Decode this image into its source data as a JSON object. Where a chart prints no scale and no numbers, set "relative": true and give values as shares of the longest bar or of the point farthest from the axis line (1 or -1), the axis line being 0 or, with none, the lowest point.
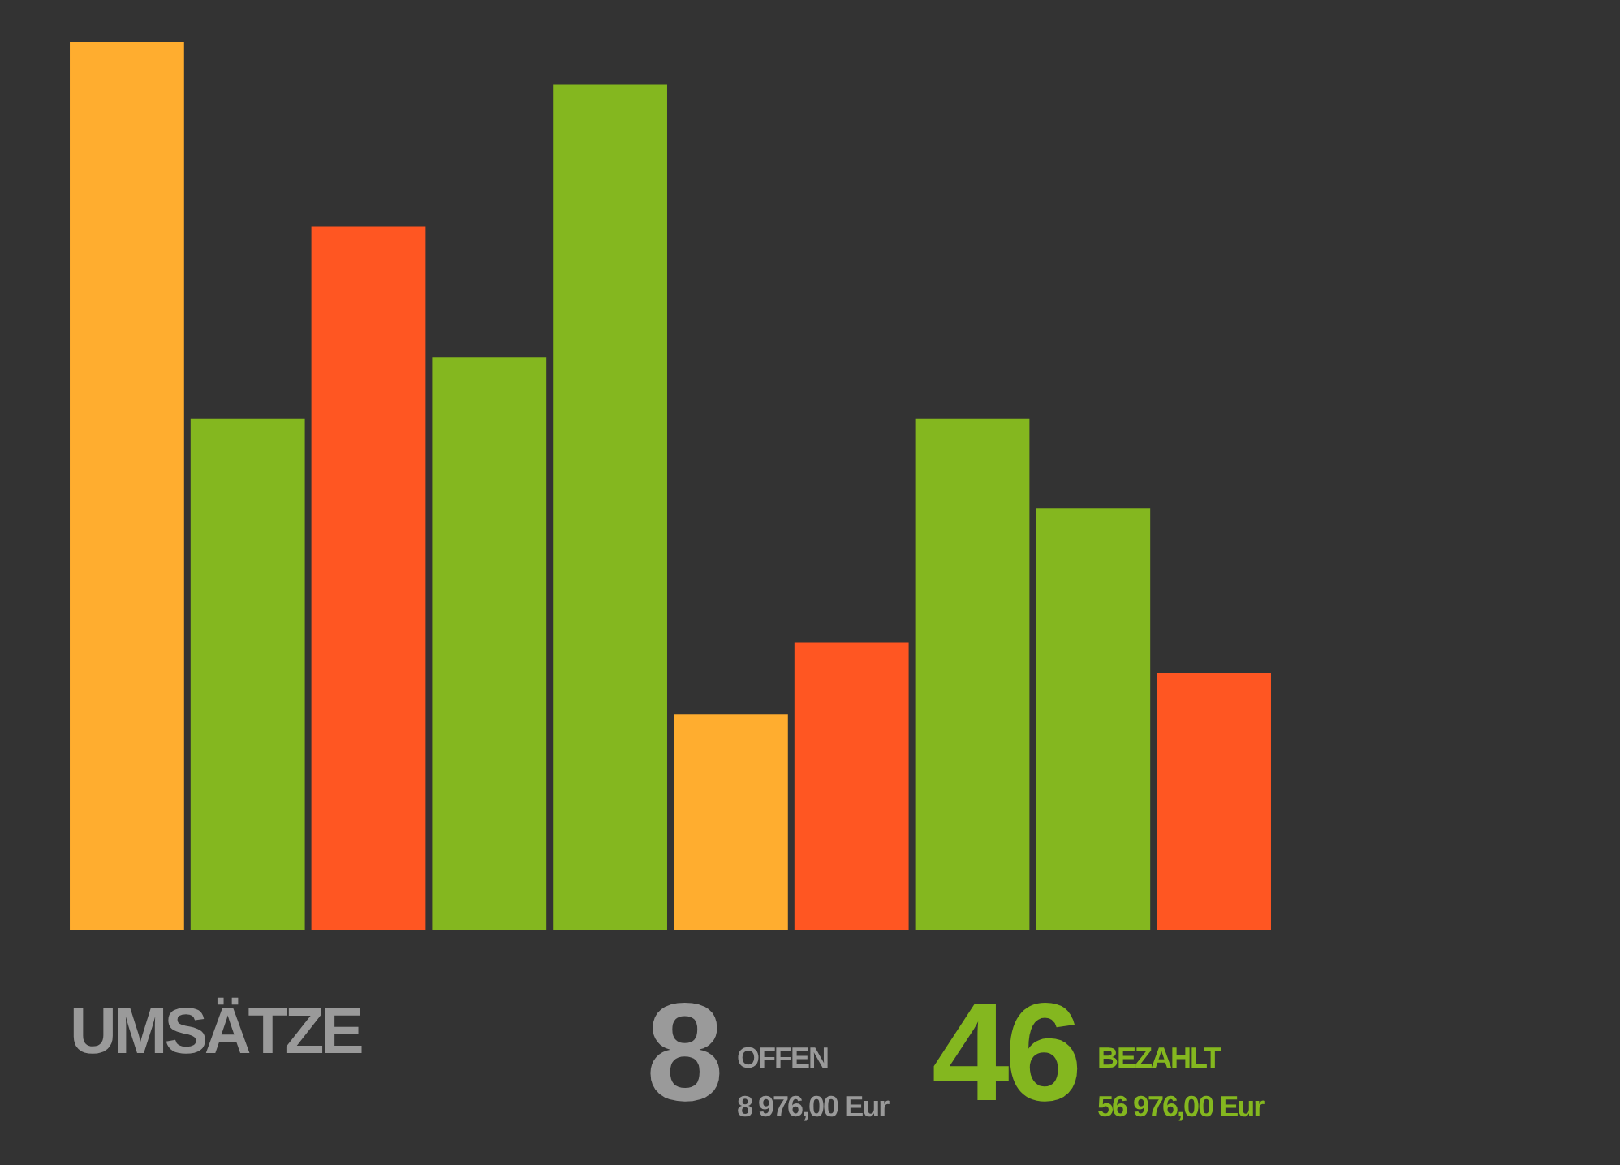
{
  "chart_data": {
    "type": "bar",
    "title": "UMSÄTZE",
    "relative": true,
    "categories": [
      null,
      null,
      null,
      null,
      null,
      null,
      null,
      null,
      null,
      null
    ],
    "values": [
      1,
      0.576,
      0.792,
      0.645,
      0.952,
      0.243,
      0.324,
      0.576,
      0.475,
      0.289
    ],
    "colors": [
      "#ffad2f",
      "#84b71f",
      "#ff5622",
      "#84b71f",
      "#84b71f",
      "#ffad2f",
      "#ff5622",
      "#84b71f",
      "#84b71f",
      "#ff5622"
    ],
    "annotations": [
      "8",
      "OFFEN",
      "8 976,00 Eur",
      "46",
      "BEZAHLT",
      "56 976,00 Eur"
    ]
  }
}
